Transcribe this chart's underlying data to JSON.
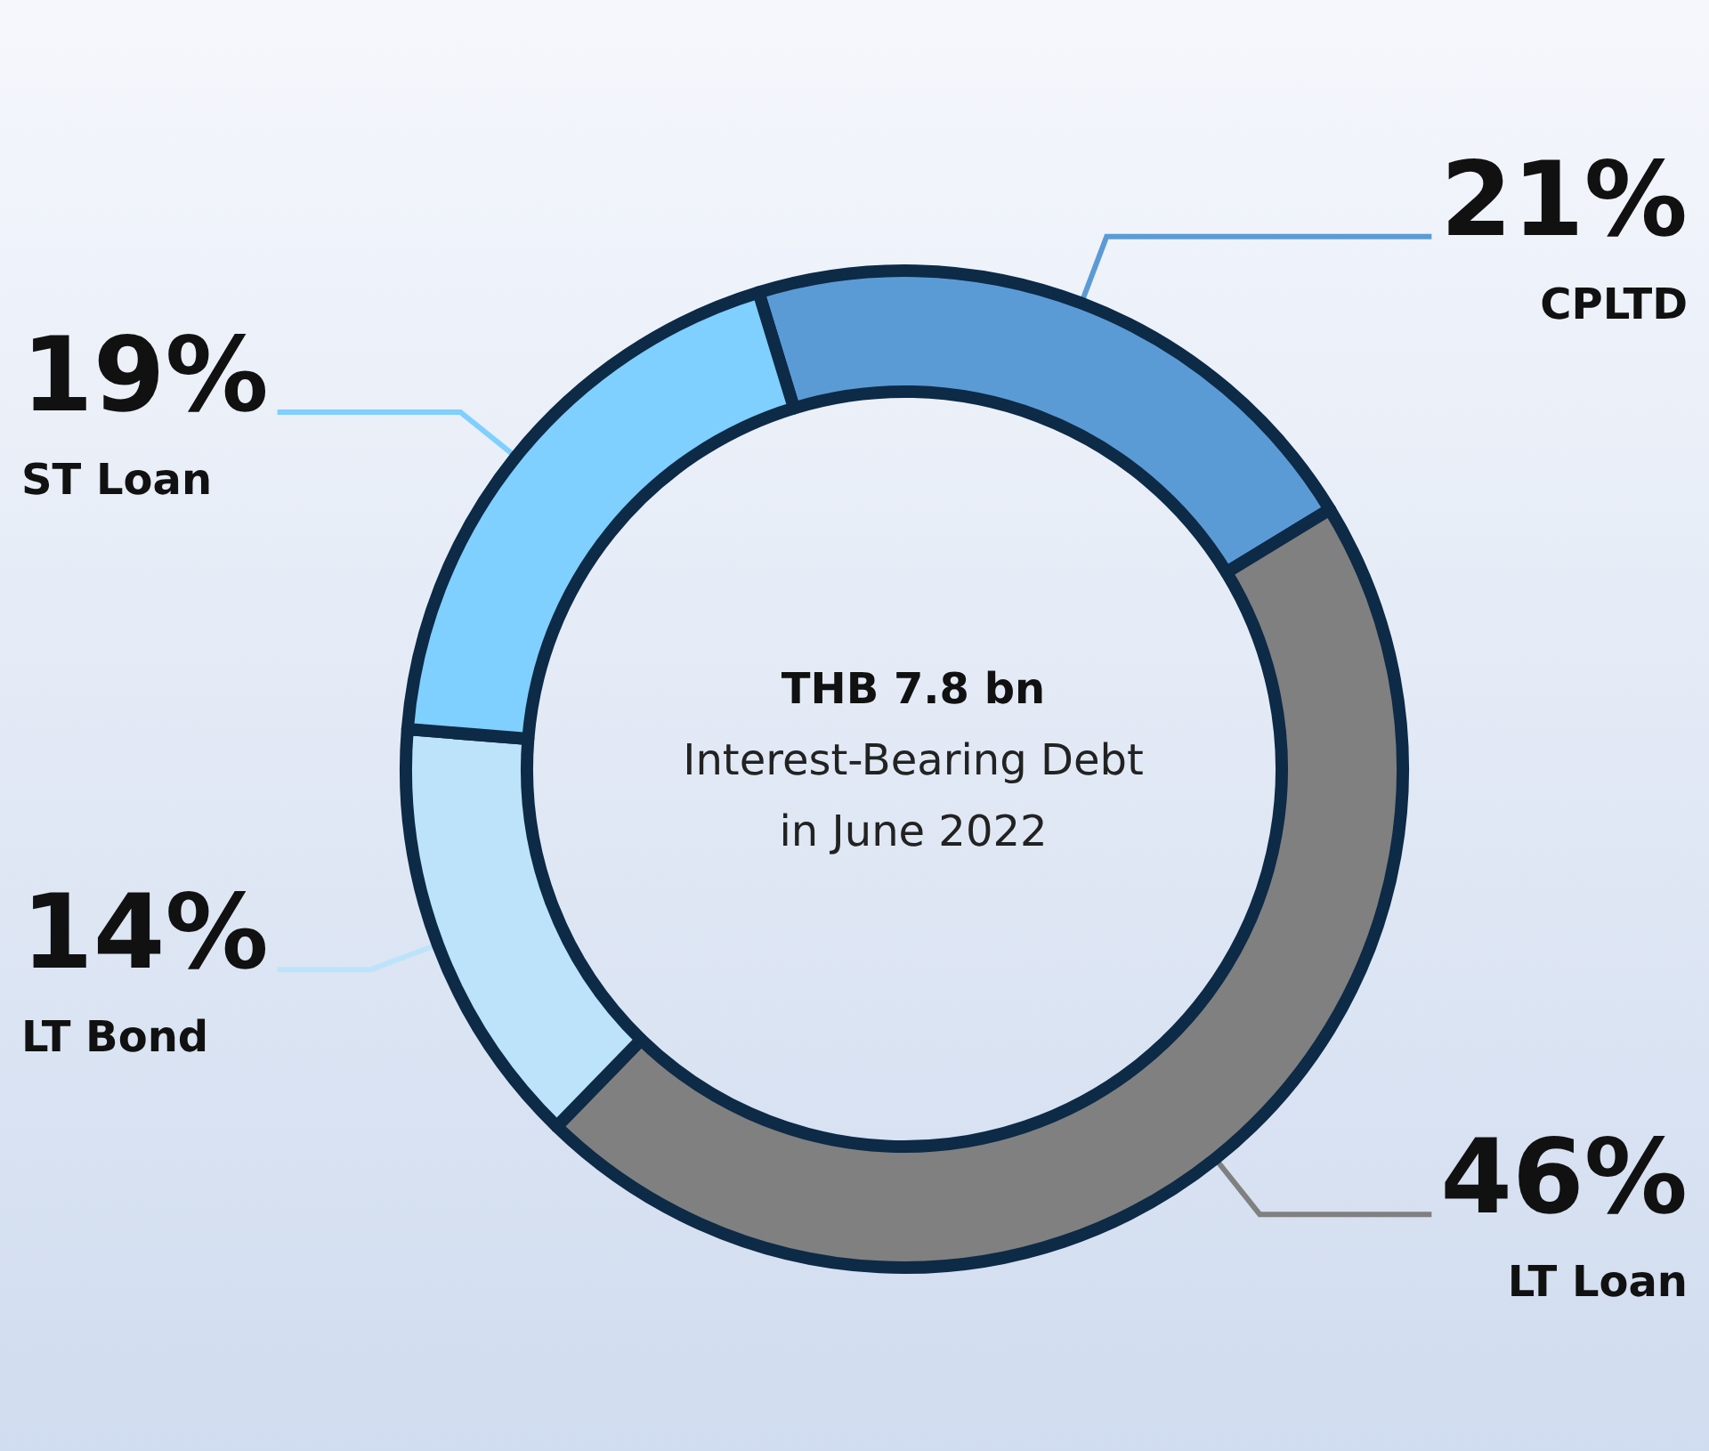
{
  "chart_data": {
    "type": "donut",
    "title": "THB 7.8 bn",
    "subtitle": "Interest-Bearing Debt\nin June 2022",
    "categories": [
      "CPLTD",
      "LT Loan",
      "LT Bond",
      "ST Loan"
    ],
    "values": [
      21,
      46,
      14,
      19
    ],
    "value_labels": [
      "21%",
      "46%",
      "14%",
      "19%"
    ],
    "colors": [
      "#5b9bd5",
      "#808080",
      "#bde3fb",
      "#7fcfff"
    ],
    "legend": false
  }
}
